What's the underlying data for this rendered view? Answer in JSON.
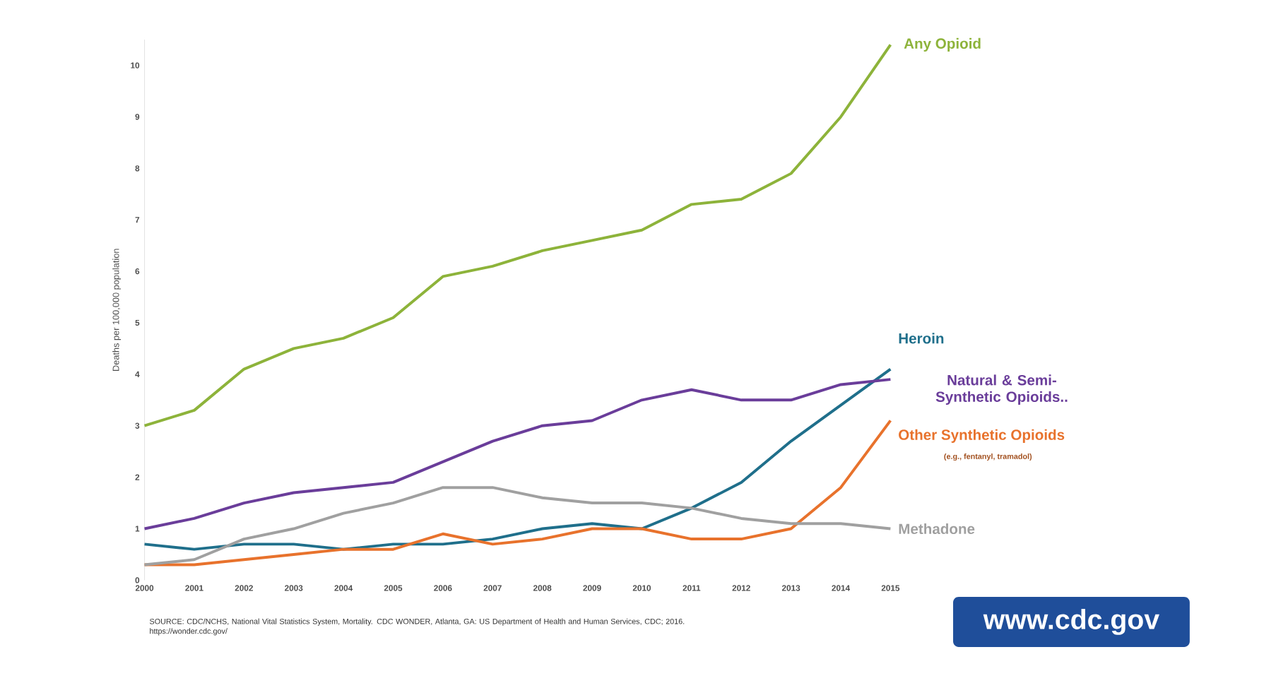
{
  "chart_data": {
    "type": "line",
    "ylabel": "Deaths per 100,000 population",
    "x": [
      2000,
      2001,
      2002,
      2003,
      2004,
      2005,
      2006,
      2007,
      2008,
      2009,
      2010,
      2011,
      2012,
      2013,
      2014,
      2015
    ],
    "xlim": [
      2000,
      2015
    ],
    "xticks": [
      2000,
      2001,
      2002,
      2003,
      2004,
      2005,
      2006,
      2007,
      2008,
      2009,
      2010,
      2011,
      2012,
      2013,
      2014,
      2015
    ],
    "ylim": [
      0,
      10.5
    ],
    "yticks": [
      0,
      1,
      2,
      3,
      4,
      5,
      6,
      7,
      8,
      9,
      10
    ],
    "series": [
      {
        "name": "Any Opioid",
        "color": "#8db33a",
        "values": [
          3.0,
          3.3,
          4.1,
          4.5,
          4.7,
          5.1,
          5.9,
          6.1,
          6.4,
          6.6,
          6.8,
          7.3,
          7.4,
          7.9,
          9.0,
          10.4
        ]
      },
      {
        "name": "Heroin",
        "color": "#1f6f8b",
        "values": [
          0.7,
          0.6,
          0.7,
          0.7,
          0.6,
          0.7,
          0.7,
          0.8,
          1.0,
          1.1,
          1.0,
          1.4,
          1.9,
          2.7,
          3.4,
          4.1
        ]
      },
      {
        "name": "Natural & Semi-Synthetic Opioids..",
        "color": "#6a3d9a",
        "values": [
          1.0,
          1.2,
          1.5,
          1.7,
          1.8,
          1.9,
          2.3,
          2.7,
          3.0,
          3.1,
          3.5,
          3.7,
          3.5,
          3.5,
          3.8,
          3.9
        ]
      },
      {
        "name": "Other Synthetic Opioids",
        "color": "#e8722c",
        "values": [
          0.3,
          0.3,
          0.4,
          0.5,
          0.6,
          0.6,
          0.9,
          0.7,
          0.8,
          1.0,
          1.0,
          0.8,
          0.8,
          1.0,
          1.8,
          3.1
        ]
      },
      {
        "name": "Methadone",
        "color": "#a0a0a0",
        "values": [
          0.3,
          0.4,
          0.8,
          1.0,
          1.3,
          1.5,
          1.8,
          1.8,
          1.6,
          1.5,
          1.5,
          1.4,
          1.2,
          1.1,
          1.1,
          1.0
        ]
      }
    ],
    "annotations": [
      "(e.g., fentanyl, tramadol)",
      "SOURCE: CDC/NCHS, National Vital Statistics System, Mortality. CDC WONDER, Atlanta, GA: US Department of Health and Human Services, CDC; 2016. https://wonder.cdc.gov/",
      "www.cdc.gov"
    ],
    "marker": "none",
    "line_style": "solid",
    "grid": false,
    "legend": false
  }
}
